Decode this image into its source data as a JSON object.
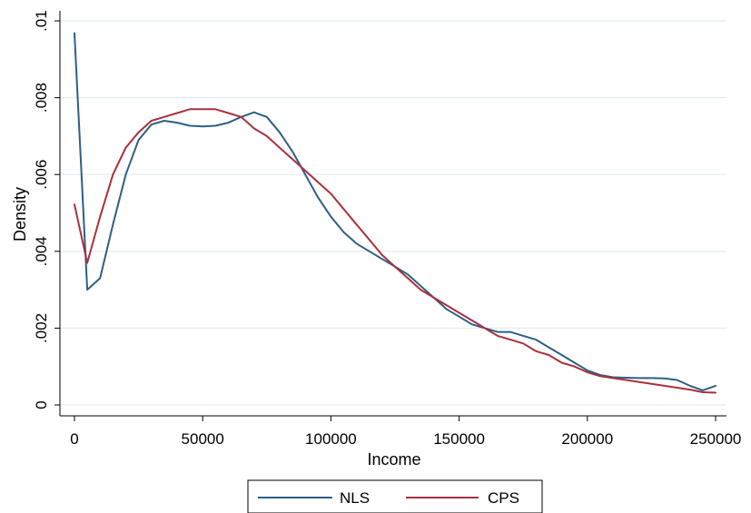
{
  "chart_data": {
    "type": "line",
    "xlabel": "Income",
    "ylabel": "Density",
    "xlim": [
      0,
      250000
    ],
    "ylim": [
      0,
      0.01
    ],
    "grid": true,
    "legend_position": "bottom",
    "x_ticks": [
      {
        "value": 0,
        "label": "0"
      },
      {
        "value": 50000,
        "label": "50000"
      },
      {
        "value": 100000,
        "label": "100000"
      },
      {
        "value": 150000,
        "label": "150000"
      },
      {
        "value": 200000,
        "label": "200000"
      },
      {
        "value": 250000,
        "label": "250000"
      }
    ],
    "y_ticks": [
      {
        "value": 0,
        "label": "0"
      },
      {
        "value": 0.002,
        "label": ".002"
      },
      {
        "value": 0.004,
        "label": ".004"
      },
      {
        "value": 0.006,
        "label": ".006"
      },
      {
        "value": 0.008,
        "label": ".008"
      },
      {
        "value": 0.01,
        "label": ".01"
      }
    ],
    "series": [
      {
        "name": "NLS",
        "color": "#2e5f86",
        "points": [
          [
            0,
            0.00968
          ],
          [
            5000,
            0.003
          ],
          [
            10000,
            0.0033
          ],
          [
            15000,
            0.0047
          ],
          [
            20000,
            0.006
          ],
          [
            25000,
            0.0069
          ],
          [
            30000,
            0.0073
          ],
          [
            35000,
            0.0074
          ],
          [
            40000,
            0.00735
          ],
          [
            45000,
            0.00727
          ],
          [
            50000,
            0.00725
          ],
          [
            55000,
            0.00727
          ],
          [
            60000,
            0.00735
          ],
          [
            65000,
            0.0075
          ],
          [
            70000,
            0.00762
          ],
          [
            75000,
            0.0075
          ],
          [
            80000,
            0.0071
          ],
          [
            85000,
            0.0066
          ],
          [
            90000,
            0.006
          ],
          [
            95000,
            0.0054
          ],
          [
            100000,
            0.0049
          ],
          [
            105000,
            0.0045
          ],
          [
            110000,
            0.0042
          ],
          [
            115000,
            0.004
          ],
          [
            120000,
            0.0038
          ],
          [
            125000,
            0.0036
          ],
          [
            130000,
            0.0034
          ],
          [
            135000,
            0.0031
          ],
          [
            140000,
            0.0028
          ],
          [
            145000,
            0.0025
          ],
          [
            150000,
            0.0023
          ],
          [
            155000,
            0.0021
          ],
          [
            160000,
            0.002
          ],
          [
            165000,
            0.0019
          ],
          [
            170000,
            0.0019
          ],
          [
            175000,
            0.0018
          ],
          [
            180000,
            0.0017
          ],
          [
            185000,
            0.0015
          ],
          [
            190000,
            0.0013
          ],
          [
            195000,
            0.0011
          ],
          [
            200000,
            0.0009
          ],
          [
            205000,
            0.00078
          ],
          [
            210000,
            0.00072
          ],
          [
            215000,
            0.00071
          ],
          [
            220000,
            0.0007
          ],
          [
            225000,
            0.0007
          ],
          [
            230000,
            0.00069
          ],
          [
            235000,
            0.00065
          ],
          [
            240000,
            0.0005
          ],
          [
            245000,
            0.00038
          ],
          [
            250000,
            0.0005
          ]
        ]
      },
      {
        "name": "CPS",
        "color": "#a8313c",
        "points": [
          [
            0,
            0.00522
          ],
          [
            5000,
            0.0037
          ],
          [
            10000,
            0.0049
          ],
          [
            15000,
            0.006
          ],
          [
            20000,
            0.0067
          ],
          [
            25000,
            0.0071
          ],
          [
            30000,
            0.0074
          ],
          [
            35000,
            0.0075
          ],
          [
            40000,
            0.0076
          ],
          [
            45000,
            0.0077
          ],
          [
            50000,
            0.0077
          ],
          [
            55000,
            0.0077
          ],
          [
            60000,
            0.0076
          ],
          [
            65000,
            0.0075
          ],
          [
            70000,
            0.0072
          ],
          [
            75000,
            0.007
          ],
          [
            80000,
            0.0067
          ],
          [
            85000,
            0.0064
          ],
          [
            90000,
            0.0061
          ],
          [
            95000,
            0.0058
          ],
          [
            100000,
            0.0055
          ],
          [
            105000,
            0.0051
          ],
          [
            110000,
            0.0047
          ],
          [
            115000,
            0.0043
          ],
          [
            120000,
            0.0039
          ],
          [
            125000,
            0.0036
          ],
          [
            130000,
            0.0033
          ],
          [
            135000,
            0.003
          ],
          [
            140000,
            0.0028
          ],
          [
            145000,
            0.0026
          ],
          [
            150000,
            0.0024
          ],
          [
            155000,
            0.0022
          ],
          [
            160000,
            0.002
          ],
          [
            165000,
            0.0018
          ],
          [
            170000,
            0.0017
          ],
          [
            175000,
            0.0016
          ],
          [
            180000,
            0.0014
          ],
          [
            185000,
            0.0013
          ],
          [
            190000,
            0.0011
          ],
          [
            195000,
            0.001
          ],
          [
            200000,
            0.00085
          ],
          [
            205000,
            0.00075
          ],
          [
            210000,
            0.0007
          ],
          [
            215000,
            0.00065
          ],
          [
            220000,
            0.0006
          ],
          [
            225000,
            0.00055
          ],
          [
            230000,
            0.0005
          ],
          [
            235000,
            0.00045
          ],
          [
            240000,
            0.0004
          ],
          [
            245000,
            0.00033
          ],
          [
            250000,
            0.00032
          ]
        ]
      }
    ]
  }
}
